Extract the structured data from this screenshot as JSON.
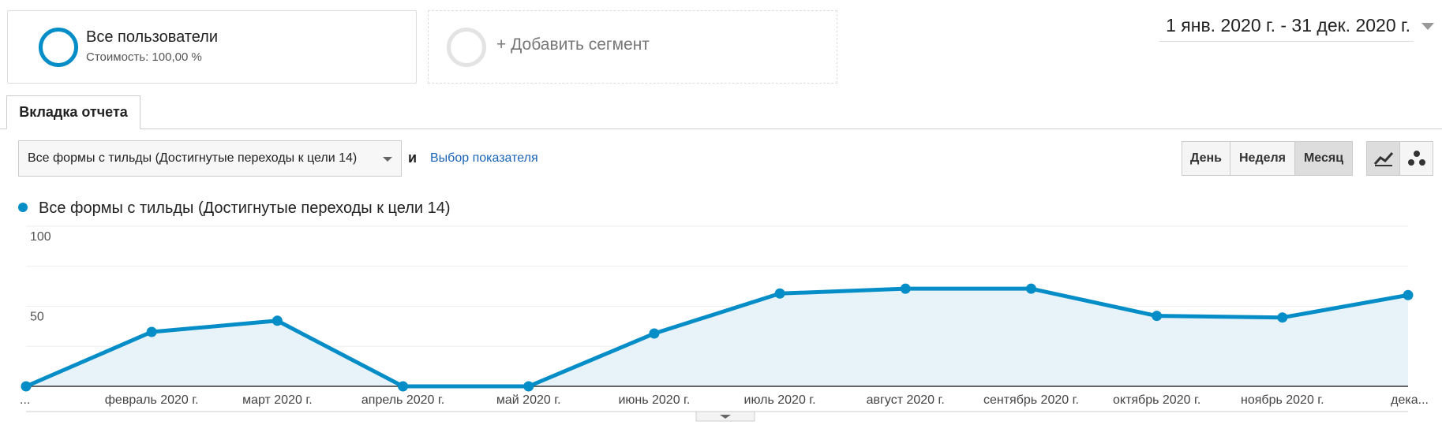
{
  "segments": {
    "primary": {
      "title": "Все пользователи",
      "subtitle": "Стоимость: 100,00 %"
    },
    "add": "+ Добавить сегмент"
  },
  "date_range": "1 янв. 2020 г. - 31 дек. 2020 г.",
  "tab": "Вкладка отчета",
  "metric_select": "Все формы с тильды (Достигнутые переходы к цели 14)",
  "and_label": "и",
  "choose_metric": "Выбор показателя",
  "period_buttons": [
    "День",
    "Неделя",
    "Месяц"
  ],
  "chart_data": {
    "type": "line",
    "categories": [
      "...",
      "февраль 2020 г.",
      "март 2020 г.",
      "апрель 2020 г.",
      "май 2020 г.",
      "июнь 2020 г.",
      "июль 2020 г.",
      "август 2020 г.",
      "сентябрь 2020 г.",
      "октябрь 2020 г.",
      "ноябрь 2020 г.",
      "дека..."
    ],
    "series": [
      {
        "name": "Все формы с тильды (Достигнутые переходы к цели 14)",
        "color": "#058dc7",
        "values": [
          0,
          34,
          41,
          0,
          0,
          33,
          58,
          61,
          61,
          44,
          43,
          57
        ]
      }
    ],
    "ylim": [
      0,
      100
    ],
    "yticks": [
      50,
      100
    ],
    "minor_yticks": [
      25,
      75
    ],
    "grid": true,
    "area": true
  }
}
